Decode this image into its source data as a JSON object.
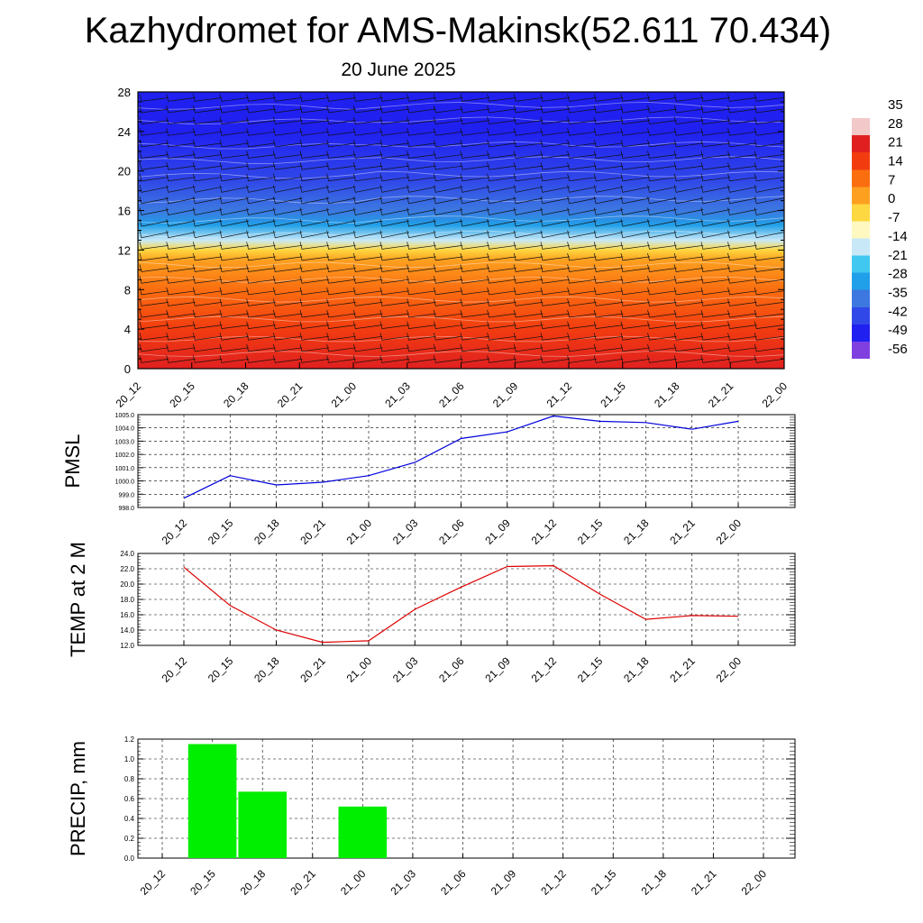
{
  "page": {
    "title": "Kazhydromet for AMS-Makinsk(52.611 70.434)",
    "subtitle": "20 June 2025"
  },
  "chart_data": [
    {
      "type": "heatmap",
      "name": "temperature cross-section",
      "x_labels": [
        "20_12",
        "20_15",
        "20_18",
        "20_21",
        "21_00",
        "21_03",
        "21_06",
        "21_09",
        "21_12",
        "21_15",
        "21_18",
        "21_21",
        "22_00"
      ],
      "y_ticks": [
        0,
        4,
        8,
        12,
        16,
        20,
        24,
        28
      ],
      "ylim": [
        0,
        28
      ],
      "colorbar": {
        "labels": [
          "35",
          "28",
          "21",
          "14",
          "7",
          "0",
          "-7",
          "-14",
          "-21",
          "-28",
          "-35",
          "-42",
          "-49",
          "-56"
        ],
        "colors": [
          "#ffffff",
          "#f2c8c8",
          "#e02020",
          "#f23c10",
          "#fa6e10",
          "#fda020",
          "#fed840",
          "#fff8c0",
          "#c8e8f8",
          "#40c8f0",
          "#20a0e8",
          "#3c78e0",
          "#3048e8",
          "#2020f0",
          "#8040e0"
        ]
      },
      "temperature_profile": [
        {
          "level": 0,
          "value": 24
        },
        {
          "level": 4,
          "value": 18
        },
        {
          "level": 8,
          "value": 10
        },
        {
          "level": 11,
          "value": 2
        },
        {
          "level": 12,
          "value": -6
        },
        {
          "level": 13,
          "value": -16
        },
        {
          "level": 14.5,
          "value": -30
        },
        {
          "level": 16,
          "value": -40
        },
        {
          "level": 19,
          "value": -48
        },
        {
          "level": 24,
          "value": -53
        },
        {
          "level": 28,
          "value": -56
        }
      ],
      "wind_barbs": "present"
    },
    {
      "type": "line",
      "ylabel": "PMSL",
      "x_labels": [
        "20_12",
        "20_15",
        "20_18",
        "20_21",
        "21_00",
        "21_03",
        "21_06",
        "21_09",
        "21_12",
        "21_15",
        "21_18",
        "21_21",
        "22_00"
      ],
      "y_ticks": [
        "998.0",
        "999.0",
        "1000.0",
        "1001.0",
        "1002.0",
        "1003.0",
        "1004.0",
        "1005.0"
      ],
      "ylim": [
        998.0,
        1005.0
      ],
      "values": [
        998.7,
        1000.4,
        999.7,
        999.9,
        1000.4,
        1001.4,
        1003.2,
        1003.7,
        1004.9,
        1004.5,
        1004.4,
        1003.9,
        1004.5
      ],
      "color": "#0000dd"
    },
    {
      "type": "line",
      "ylabel": "TEMP at 2 M",
      "x_labels": [
        "20_12",
        "20_15",
        "20_18",
        "20_21",
        "21_00",
        "21_03",
        "21_06",
        "21_09",
        "21_12",
        "21_15",
        "21_18",
        "21_21",
        "22_00"
      ],
      "y_ticks": [
        "12.0",
        "14.0",
        "16.0",
        "18.0",
        "20.0",
        "22.0",
        "24.0"
      ],
      "ylim": [
        12.0,
        24.0
      ],
      "values": [
        22.2,
        17.2,
        14.0,
        12.4,
        12.6,
        16.7,
        19.6,
        22.3,
        22.4,
        18.7,
        15.4,
        15.9,
        15.8
      ],
      "color": "#dd0000"
    },
    {
      "type": "bar",
      "ylabel": "PRECIP, mm",
      "x_labels": [
        "20_12",
        "20_15",
        "20_18",
        "20_21",
        "21_00",
        "21_03",
        "21_06",
        "21_09",
        "21_12",
        "21_15",
        "21_18",
        "21_21",
        "22_00"
      ],
      "y_ticks": [
        "0.0",
        "0.2",
        "0.4",
        "0.6",
        "0.8",
        "1.0",
        "1.2"
      ],
      "ylim": [
        0,
        1.2
      ],
      "values": [
        0,
        1.15,
        0.67,
        0,
        0.52,
        0,
        0,
        0,
        0,
        0,
        0,
        0,
        0
      ],
      "color": "#00ee00"
    }
  ]
}
